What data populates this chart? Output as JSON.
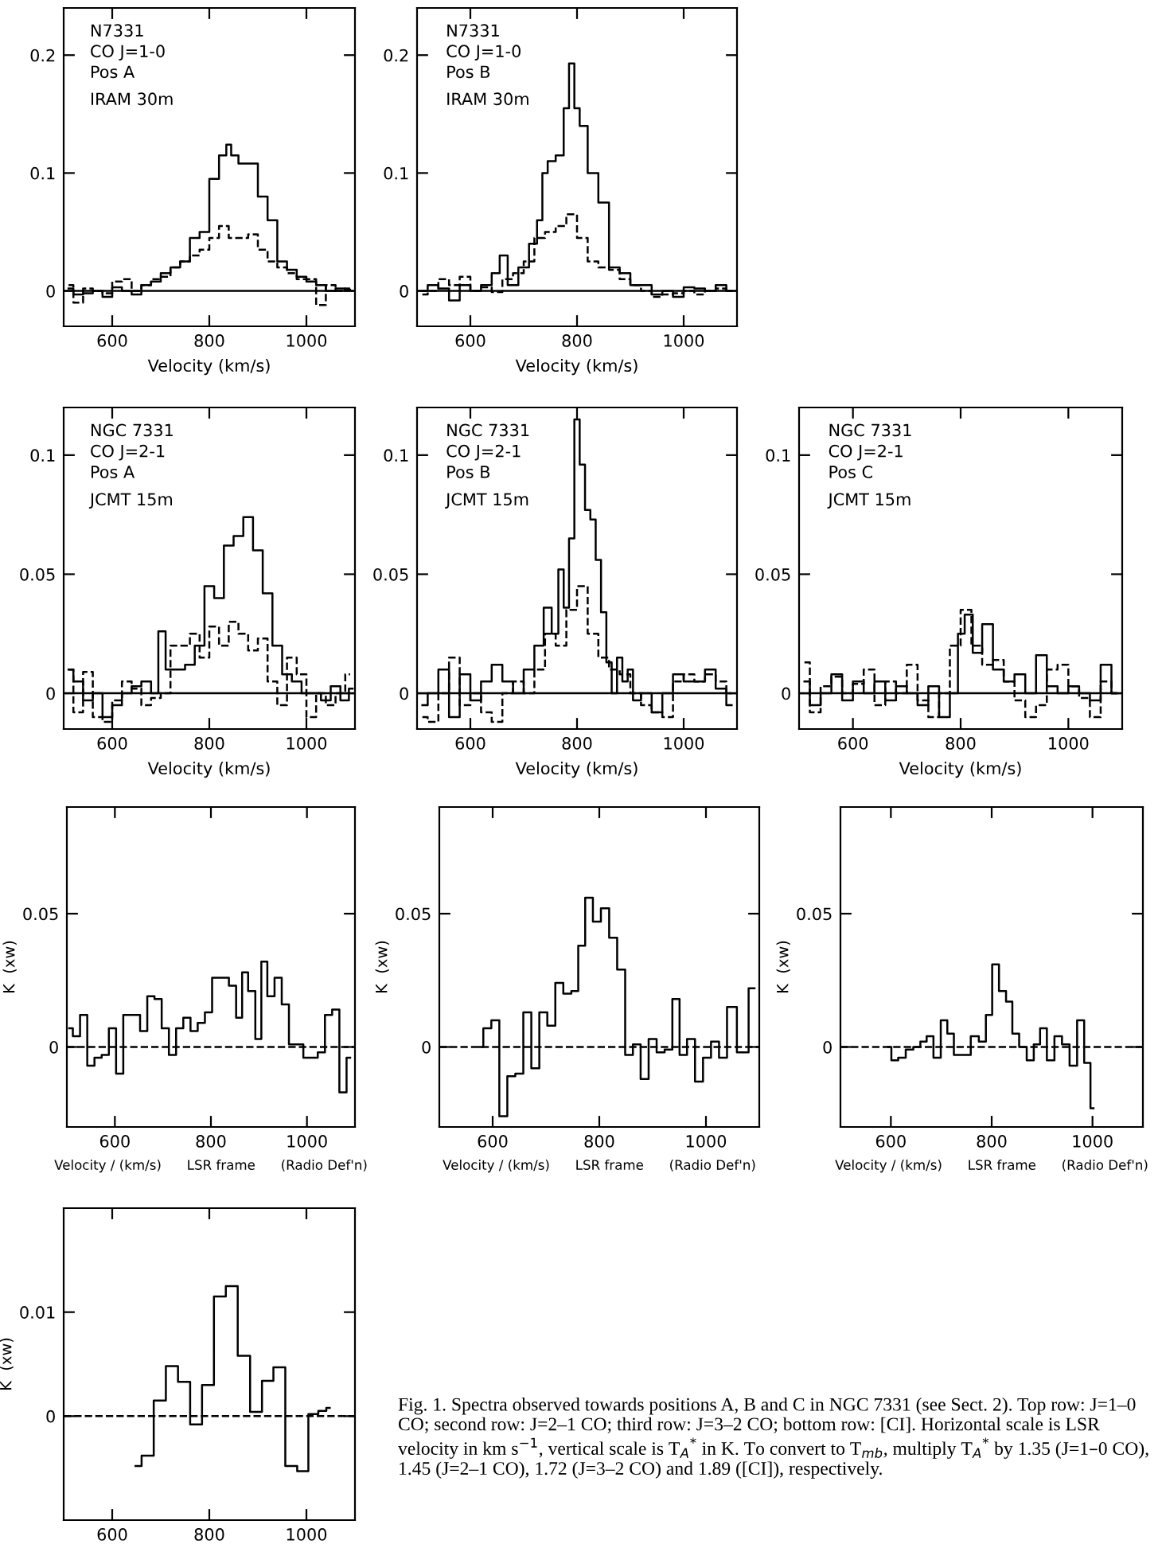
{
  "chart_data": [
    {
      "type": "step",
      "xlim": [
        500,
        1100
      ],
      "xticks": [
        600,
        800,
        1000
      ],
      "ylim": [
        -0.03,
        0.24
      ],
      "yticks": [
        0,
        0.1,
        0.2
      ],
      "xlabel": "Velocity (km/s)",
      "annotations": [
        "N7331",
        "CO J=1-0",
        "Pos A",
        "IRAM 30m"
      ],
      "ref_lines": [
        {
          "axis": "y",
          "value": 0,
          "color": "#000000",
          "line_style": "solid"
        }
      ],
      "series": [
        {
          "color": "#000000",
          "line_style": "solid",
          "x": [
            510,
            530,
            550,
            570,
            590,
            610,
            630,
            650,
            670,
            690,
            710,
            730,
            750,
            770,
            790,
            810,
            830,
            840,
            850,
            870,
            890,
            910,
            930,
            950,
            970,
            990,
            1010,
            1030,
            1050,
            1070,
            1090
          ],
          "values": [
            0.002,
            -0.003,
            -0.002,
            0.0,
            -0.005,
            0.003,
            0.0,
            -0.003,
            0.005,
            0.008,
            0.015,
            0.02,
            0.025,
            0.045,
            0.05,
            0.095,
            0.115,
            0.124,
            0.115,
            0.108,
            0.108,
            0.08,
            0.06,
            0.025,
            0.018,
            0.012,
            0.008,
            0.005,
            0.0,
            0.002,
            0.001
          ]
        },
        {
          "color": "#000000",
          "line_style": "dashed",
          "x": [
            510,
            530,
            550,
            570,
            590,
            610,
            630,
            650,
            670,
            690,
            710,
            730,
            750,
            770,
            790,
            810,
            830,
            850,
            870,
            890,
            910,
            930,
            950,
            970,
            990,
            1010,
            1030,
            1050,
            1070,
            1090
          ],
          "values": [
            0.005,
            -0.01,
            0.002,
            0.0,
            -0.002,
            0.008,
            0.01,
            0.0,
            0.005,
            0.01,
            0.012,
            0.02,
            0.025,
            0.03,
            0.035,
            0.045,
            0.055,
            0.045,
            0.045,
            0.048,
            0.035,
            0.025,
            0.02,
            0.015,
            0.01,
            0.01,
            -0.012,
            0.005,
            0.0,
            0.002
          ]
        }
      ]
    },
    {
      "type": "step",
      "xlim": [
        500,
        1100
      ],
      "xticks": [
        600,
        800,
        1000
      ],
      "ylim": [
        -0.03,
        0.24
      ],
      "yticks": [
        0,
        0.1,
        0.2
      ],
      "xlabel": "Velocity (km/s)",
      "annotations": [
        "N7331",
        "CO J=1-0",
        "Pos B",
        "IRAM 30m"
      ],
      "ref_lines": [
        {
          "axis": "y",
          "value": 0,
          "color": "#000000",
          "line_style": "solid"
        }
      ],
      "series": [
        {
          "color": "#000000",
          "line_style": "solid",
          "x": [
            510,
            530,
            550,
            570,
            590,
            610,
            630,
            650,
            660,
            680,
            700,
            720,
            730,
            740,
            750,
            770,
            780,
            790,
            800,
            810,
            830,
            850,
            870,
            890,
            910,
            930,
            950,
            970,
            990,
            1010,
            1030,
            1050,
            1070,
            1090
          ],
          "values": [
            0.0,
            0.005,
            0.002,
            -0.008,
            0.005,
            0.0,
            0.005,
            0.015,
            0.03,
            0.005,
            0.02,
            0.04,
            0.06,
            0.1,
            0.11,
            0.115,
            0.155,
            0.193,
            0.155,
            0.14,
            0.1,
            0.075,
            0.02,
            0.015,
            0.005,
            0.005,
            -0.003,
            0.0,
            -0.005,
            0.003,
            0.002,
            0.0,
            0.005,
            0.0
          ]
        },
        {
          "color": "#000000",
          "line_style": "dashed",
          "x": [
            510,
            530,
            550,
            570,
            590,
            610,
            630,
            650,
            670,
            690,
            710,
            730,
            750,
            770,
            790,
            810,
            830,
            850,
            870,
            890,
            910,
            930,
            950,
            970,
            990,
            1010,
            1030,
            1050,
            1070,
            1090
          ],
          "values": [
            -0.003,
            0.0,
            0.01,
            0.005,
            0.012,
            0.0,
            0.003,
            -0.001,
            0.01,
            0.015,
            0.025,
            0.045,
            0.05,
            0.055,
            0.065,
            0.045,
            0.025,
            0.02,
            0.018,
            0.01,
            0.005,
            0.0,
            -0.005,
            -0.003,
            -0.002,
            0.0,
            -0.003,
            0.0,
            0.002,
            0.0
          ]
        }
      ]
    },
    {
      "type": "step",
      "xlim": [
        500,
        1100
      ],
      "xticks": [
        600,
        800,
        1000
      ],
      "ylim": [
        -0.015,
        0.12
      ],
      "yticks": [
        0,
        0.05,
        0.1
      ],
      "xlabel": "Velocity (km/s)",
      "annotations": [
        "NGC 7331",
        "CO J=2-1",
        "Pos A",
        "JCMT 15m"
      ],
      "ref_lines": [
        {
          "axis": "y",
          "value": 0,
          "color": "#000000",
          "line_style": "solid"
        }
      ],
      "series": [
        {
          "color": "#000000",
          "line_style": "solid",
          "x": [
            510,
            530,
            550,
            570,
            590,
            610,
            630,
            650,
            670,
            690,
            700,
            720,
            740,
            760,
            780,
            800,
            820,
            840,
            860,
            880,
            900,
            920,
            940,
            960,
            980,
            1000,
            1020,
            1040,
            1060,
            1080,
            1095
          ],
          "values": [
            0.01,
            0.005,
            -0.003,
            0.0,
            -0.01,
            -0.005,
            0.0,
            0.003,
            0.005,
            0.0,
            0.026,
            0.01,
            0.01,
            0.012,
            0.02,
            0.045,
            0.04,
            0.062,
            0.066,
            0.074,
            0.06,
            0.042,
            0.02,
            0.008,
            0.005,
            0.0,
            0.0,
            -0.003,
            0.003,
            -0.003,
            0.002
          ]
        },
        {
          "color": "#000000",
          "line_style": "dashed",
          "x": [
            510,
            530,
            550,
            570,
            590,
            610,
            630,
            650,
            670,
            690,
            710,
            730,
            750,
            770,
            790,
            810,
            830,
            850,
            870,
            890,
            910,
            930,
            950,
            970,
            990,
            1010,
            1030,
            1050,
            1070,
            1090
          ],
          "values": [
            0.01,
            -0.008,
            0.009,
            -0.01,
            -0.012,
            -0.003,
            0.005,
            0.002,
            -0.005,
            -0.002,
            0.0,
            0.02,
            0.02,
            0.025,
            0.015,
            0.028,
            0.02,
            0.03,
            0.025,
            0.018,
            0.023,
            0.005,
            -0.005,
            0.015,
            0.008,
            -0.01,
            0.0,
            -0.005,
            0.0,
            0.008
          ]
        }
      ]
    },
    {
      "type": "step",
      "xlim": [
        500,
        1100
      ],
      "xticks": [
        600,
        800,
        1000
      ],
      "ylim": [
        -0.015,
        0.12
      ],
      "yticks": [
        0,
        0.05,
        0.1
      ],
      "xlabel": "Velocity (km/s)",
      "annotations": [
        "NGC 7331",
        "CO J=2-1",
        "Pos B",
        "JCMT 15m"
      ],
      "ref_lines": [
        {
          "axis": "y",
          "value": 0,
          "color": "#000000",
          "line_style": "solid"
        }
      ],
      "series": [
        {
          "color": "#000000",
          "line_style": "solid",
          "x": [
            510,
            530,
            550,
            570,
            590,
            610,
            630,
            650,
            670,
            690,
            710,
            730,
            745,
            760,
            770,
            780,
            790,
            800,
            810,
            820,
            830,
            840,
            850,
            860,
            870,
            880,
            890,
            900,
            910,
            930,
            950,
            970,
            990,
            1010,
            1030,
            1050,
            1070,
            1090
          ],
          "values": [
            -0.005,
            0.0,
            0.01,
            -0.01,
            0.008,
            -0.003,
            0.005,
            0.012,
            0.005,
            0.0,
            0.01,
            0.02,
            0.036,
            0.025,
            0.052,
            0.036,
            0.065,
            0.115,
            0.096,
            0.077,
            0.073,
            0.056,
            0.034,
            0.013,
            0.0,
            0.015,
            0.005,
            0.01,
            -0.003,
            0.0,
            -0.008,
            0.0,
            0.008,
            0.005,
            0.005,
            0.01,
            0.002,
            -0.005
          ]
        },
        {
          "color": "#000000",
          "line_style": "dashed",
          "x": [
            510,
            530,
            550,
            570,
            590,
            610,
            630,
            650,
            670,
            690,
            710,
            730,
            750,
            770,
            790,
            810,
            830,
            850,
            870,
            890,
            910,
            930,
            950,
            970,
            990,
            1010,
            1030,
            1050,
            1070,
            1090
          ],
          "values": [
            -0.01,
            -0.012,
            0.0,
            0.015,
            -0.005,
            0.0,
            -0.008,
            -0.012,
            0.0,
            0.005,
            0.0,
            0.01,
            0.025,
            0.02,
            0.035,
            0.045,
            0.025,
            0.015,
            0.01,
            0.008,
            0.0,
            -0.005,
            -0.008,
            -0.01,
            0.005,
            0.008,
            0.005,
            0.008,
            0.005,
            0.0
          ]
        }
      ]
    },
    {
      "type": "step",
      "xlim": [
        500,
        1100
      ],
      "xticks": [
        600,
        800,
        1000
      ],
      "ylim": [
        -0.015,
        0.12
      ],
      "yticks": [
        0,
        0.05,
        0.1
      ],
      "xlabel": "Velocity (km/s)",
      "annotations": [
        "NGC 7331",
        "CO J=2-1",
        "Pos C",
        "JCMT 15m"
      ],
      "ref_lines": [
        {
          "axis": "y",
          "value": 0,
          "color": "#000000",
          "line_style": "solid"
        }
      ],
      "series": [
        {
          "color": "#000000",
          "line_style": "solid",
          "x": [
            510,
            530,
            550,
            570,
            590,
            610,
            630,
            650,
            670,
            690,
            710,
            730,
            750,
            770,
            790,
            800,
            815,
            830,
            850,
            870,
            890,
            910,
            930,
            950,
            970,
            990,
            1010,
            1030,
            1050,
            1070,
            1090
          ],
          "values": [
            0.005,
            -0.005,
            0.0,
            0.008,
            -0.003,
            0.005,
            0.0,
            0.005,
            -0.003,
            0.003,
            0.0,
            -0.005,
            0.003,
            -0.01,
            0.0,
            0.025,
            0.033,
            0.017,
            0.029,
            0.01,
            0.005,
            0.008,
            0.0,
            0.016,
            0.003,
            0.0,
            0.003,
            0.0,
            -0.003,
            0.012,
            0.0
          ]
        },
        {
          "color": "#000000",
          "line_style": "dashed",
          "x": [
            510,
            530,
            550,
            570,
            590,
            610,
            630,
            650,
            670,
            690,
            710,
            730,
            750,
            770,
            790,
            810,
            830,
            850,
            870,
            890,
            910,
            930,
            950,
            970,
            990,
            1010,
            1030,
            1050,
            1070,
            1090
          ],
          "values": [
            0.013,
            -0.008,
            0.003,
            0.007,
            0.0,
            0.004,
            0.01,
            -0.005,
            0.005,
            0.0,
            0.012,
            -0.003,
            -0.01,
            0.0,
            0.02,
            0.035,
            0.02,
            0.012,
            0.014,
            0.005,
            -0.003,
            -0.01,
            -0.005,
            0.01,
            0.012,
            0.003,
            -0.002,
            -0.01,
            0.005,
            0.0
          ]
        }
      ]
    },
    {
      "type": "step",
      "xlim": [
        500,
        1100
      ],
      "xticks": [
        600,
        800,
        1000
      ],
      "ylim": [
        -0.03,
        0.09
      ],
      "yticks": [
        0,
        0.05
      ],
      "xlabel": "Velocity / (km/s)      LSR frame      (Radio Def'n)",
      "ylabel": "K  (xw)",
      "ref_lines": [
        {
          "axis": "y",
          "value": 0,
          "color": "#000000",
          "line_style": "dashed"
        }
      ],
      "series": [
        {
          "color": "#000000",
          "line_style": "solid",
          "x": [
            505,
            520,
            535,
            550,
            565,
            580,
            595,
            610,
            625,
            645,
            660,
            675,
            690,
            705,
            720,
            735,
            750,
            765,
            780,
            795,
            810,
            830,
            845,
            860,
            870,
            885,
            900,
            910,
            925,
            940,
            955,
            970,
            985,
            1000,
            1015,
            1030,
            1045,
            1060,
            1075,
            1090
          ],
          "values": [
            0.007,
            0.004,
            0.012,
            -0.007,
            -0.004,
            -0.003,
            0.007,
            -0.01,
            0.012,
            0.012,
            0.006,
            0.019,
            0.018,
            0.007,
            -0.003,
            0.007,
            0.011,
            0.006,
            0.009,
            0.013,
            0.026,
            0.026,
            0.023,
            0.011,
            0.028,
            0.021,
            0.003,
            0.032,
            0.019,
            0.026,
            0.016,
            0.001,
            0.001,
            -0.004,
            -0.004,
            -0.002,
            0.012,
            0.014,
            -0.017,
            -0.004
          ]
        }
      ]
    },
    {
      "type": "step",
      "xlim": [
        500,
        1100
      ],
      "xticks": [
        600,
        800,
        1000
      ],
      "ylim": [
        -0.03,
        0.09
      ],
      "yticks": [
        0,
        0.05
      ],
      "xlabel": "Velocity / (km/s)      LSR frame      (Radio Def'n)",
      "ylabel": "K  (xw)",
      "ref_lines": [
        {
          "axis": "y",
          "value": 0,
          "color": "#000000",
          "line_style": "dashed"
        }
      ],
      "series": [
        {
          "color": "#000000",
          "line_style": "solid",
          "x": [
            575,
            590,
            605,
            620,
            635,
            650,
            665,
            680,
            695,
            710,
            725,
            740,
            755,
            766,
            781,
            795,
            811,
            826,
            841,
            856,
            870,
            885,
            900,
            915,
            930,
            944,
            957,
            972,
            987,
            1002,
            1017,
            1032,
            1047,
            1069,
            1091
          ],
          "values": [
            0.0,
            0.007,
            0.01,
            -0.026,
            -0.011,
            -0.01,
            0.013,
            -0.008,
            0.013,
            0.008,
            0.024,
            0.02,
            0.021,
            0.038,
            0.056,
            0.047,
            0.052,
            0.041,
            0.029,
            -0.003,
            0.001,
            -0.012,
            0.003,
            -0.002,
            -0.001,
            0.018,
            -0.003,
            0.003,
            -0.013,
            -0.004,
            0.002,
            -0.004,
            0.015,
            -0.002,
            0.022
          ]
        }
      ]
    },
    {
      "type": "step",
      "xlim": [
        500,
        1100
      ],
      "xticks": [
        600,
        800,
        1000
      ],
      "ylim": [
        -0.03,
        0.09
      ],
      "yticks": [
        0,
        0.05
      ],
      "xlabel": "Velocity / (km/s)      LSR frame      (Radio Def'n)",
      "ylabel": "K  (xw)",
      "ref_lines": [
        {
          "axis": "y",
          "value": 0,
          "color": "#000000",
          "line_style": "dashed"
        }
      ],
      "series": [
        {
          "color": "#000000",
          "line_style": "solid",
          "x": [
            595,
            607,
            622,
            637,
            652,
            665,
            677,
            692,
            706,
            718,
            732,
            750,
            767,
            782,
            795,
            807,
            822,
            835,
            847,
            862,
            877,
            890,
            902,
            917,
            932,
            947,
            962,
            977,
            990,
            1002
          ],
          "values": [
            0.0,
            -0.005,
            -0.004,
            -0.001,
            0.0,
            0.002,
            0.004,
            -0.004,
            0.01,
            0.005,
            -0.003,
            -0.003,
            0.004,
            0.002,
            0.012,
            0.031,
            0.021,
            0.017,
            0.005,
            0.0,
            -0.005,
            0.001,
            0.007,
            -0.005,
            0.004,
            0.001,
            -0.007,
            0.01,
            -0.006,
            -0.023
          ]
        }
      ]
    },
    {
      "type": "step",
      "xlim": [
        500,
        1100
      ],
      "xticks": [
        600,
        800,
        1000
      ],
      "ylim": [
        -0.01,
        0.02
      ],
      "yticks": [
        0,
        0.01
      ],
      "ylabel": "K  (xw)",
      "ref_lines": [
        {
          "axis": "y",
          "value": 0,
          "color": "#000000",
          "line_style": "dashed"
        }
      ],
      "series": [
        {
          "color": "#000000",
          "line_style": "solid",
          "x": [
            648,
            673,
            698,
            723,
            748,
            773,
            797,
            822,
            846,
            871,
            897,
            920,
            944,
            969,
            993,
            1015,
            1034,
            1048
          ],
          "values": [
            -0.0048,
            -0.0038,
            0.0015,
            0.0048,
            0.0033,
            -0.0008,
            0.003,
            0.0115,
            0.0125,
            0.0058,
            0.0004,
            0.0034,
            0.0047,
            -0.0048,
            -0.0053,
            0.0002,
            0.0005,
            0.0008
          ]
        }
      ]
    },
    {
      "type": "other",
      "annotations": [
        "Fig. 1. Spectra observed towards positions A, B and C in NGC 7331 (see Sect. 2). Top row: J=1–0 CO; second row: J=2–1 CO; third row: J=3–2 CO; bottom row: [CI]. Horizontal scale is LSR velocity in km s$^{−1}$, vertical scale is T$_{A}$$^{*}$ in K. To convert to T$_{mb}$, multiply T$_{A}$$^{*}$ by 1.35 (J=1–0 CO), 1.45 (J=2–1 CO), 1.72 (J=3–2 CO) and 1.89 ([CI]), respectively."
      ]
    }
  ]
}
